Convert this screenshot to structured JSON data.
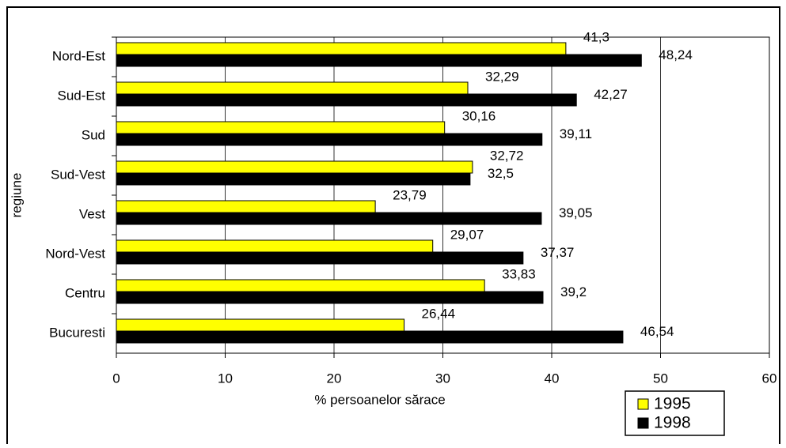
{
  "chart_data": {
    "type": "bar",
    "orientation": "horizontal",
    "x_label": "% persoanelor sărace",
    "y_label": "regiune",
    "categories": [
      "Nord-Est",
      "Sud-Est",
      "Sud",
      "Sud-Vest",
      "Vest",
      "Nord-Vest",
      "Centru",
      "Bucuresti"
    ],
    "series": [
      {
        "name": "1995",
        "color": "#ffff00",
        "values": [
          41.3,
          32.29,
          30.16,
          32.72,
          23.79,
          29.07,
          33.83,
          26.44
        ],
        "value_labels": [
          "41,3",
          "32,29",
          "30,16",
          "32,72",
          "23,79",
          "29,07",
          "33,83",
          "26,44"
        ]
      },
      {
        "name": "1998",
        "color": "#000000",
        "values": [
          48.24,
          42.27,
          39.11,
          32.5,
          39.05,
          37.37,
          39.2,
          46.54
        ],
        "value_labels": [
          "48,24",
          "42,27",
          "39,11",
          "32,5",
          "39,05",
          "37,37",
          "39,2",
          "46,54"
        ]
      }
    ],
    "xlim": [
      0,
      60
    ],
    "xticks": [
      0,
      10,
      20,
      30,
      40,
      50,
      60
    ],
    "grid": true,
    "legend": "bottom-right"
  }
}
